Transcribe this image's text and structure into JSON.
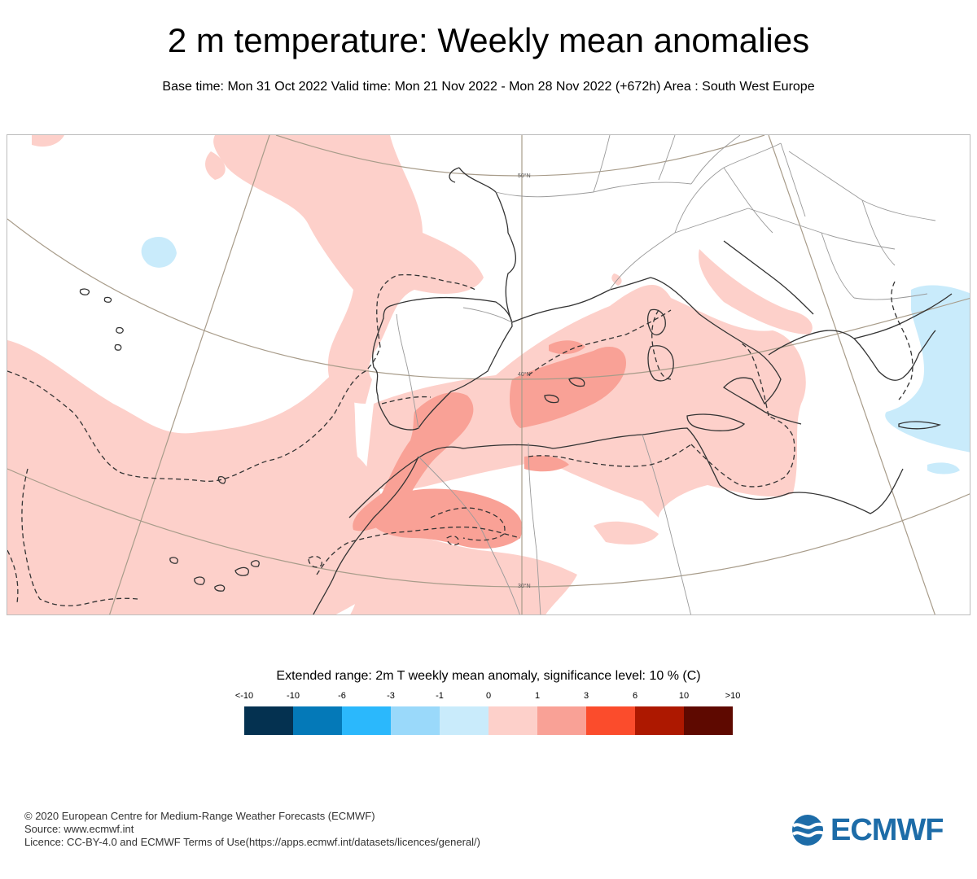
{
  "header": {
    "title": "2 m temperature: Weekly mean anomalies",
    "subtitle": "Base time: Mon 31 Oct 2022 Valid time: Mon 21 Nov 2022 - Mon 28 Nov 2022 (+672h) Area : South West Europe"
  },
  "map": {
    "lat_labels": [
      "50°N",
      "40°N",
      "30°N"
    ],
    "colors": {
      "anomaly_0_1": "#fdd0ca",
      "anomaly_1_3": "#f9a196",
      "anomaly_neg1_0": "#c9ebfb",
      "anomaly_neg3_neg1": "#9ad9fa",
      "coastline": "#333333",
      "borders": "#9a9a9a",
      "graticule": "#a89c8a",
      "significance_contour": "#333333"
    }
  },
  "legend": {
    "title": "Extended range: 2m T weekly mean anomaly, significance level: 10 % (C)",
    "ticks": [
      "<-10",
      "-10",
      "-6",
      "-3",
      "-1",
      "0",
      "1",
      "3",
      "6",
      "10",
      ">10"
    ],
    "colors": [
      "#043150",
      "#0479b8",
      "#2bb8fc",
      "#9ad9fa",
      "#c9ebfb",
      "#fdd0ca",
      "#f9a196",
      "#fb4c2c",
      "#ad1800",
      "#5e0900"
    ]
  },
  "footer": {
    "copyright": "© 2020 European Centre for Medium-Range Weather Forecasts (ECMWF)",
    "source": "Source: www.ecmwf.int",
    "licence": "Licence: CC-BY-4.0 and ECMWF Terms of Use(https://apps.ecmwf.int/datasets/licences/general/)"
  },
  "logo": {
    "text": "ECMWF",
    "color": "#1d6ca8"
  }
}
